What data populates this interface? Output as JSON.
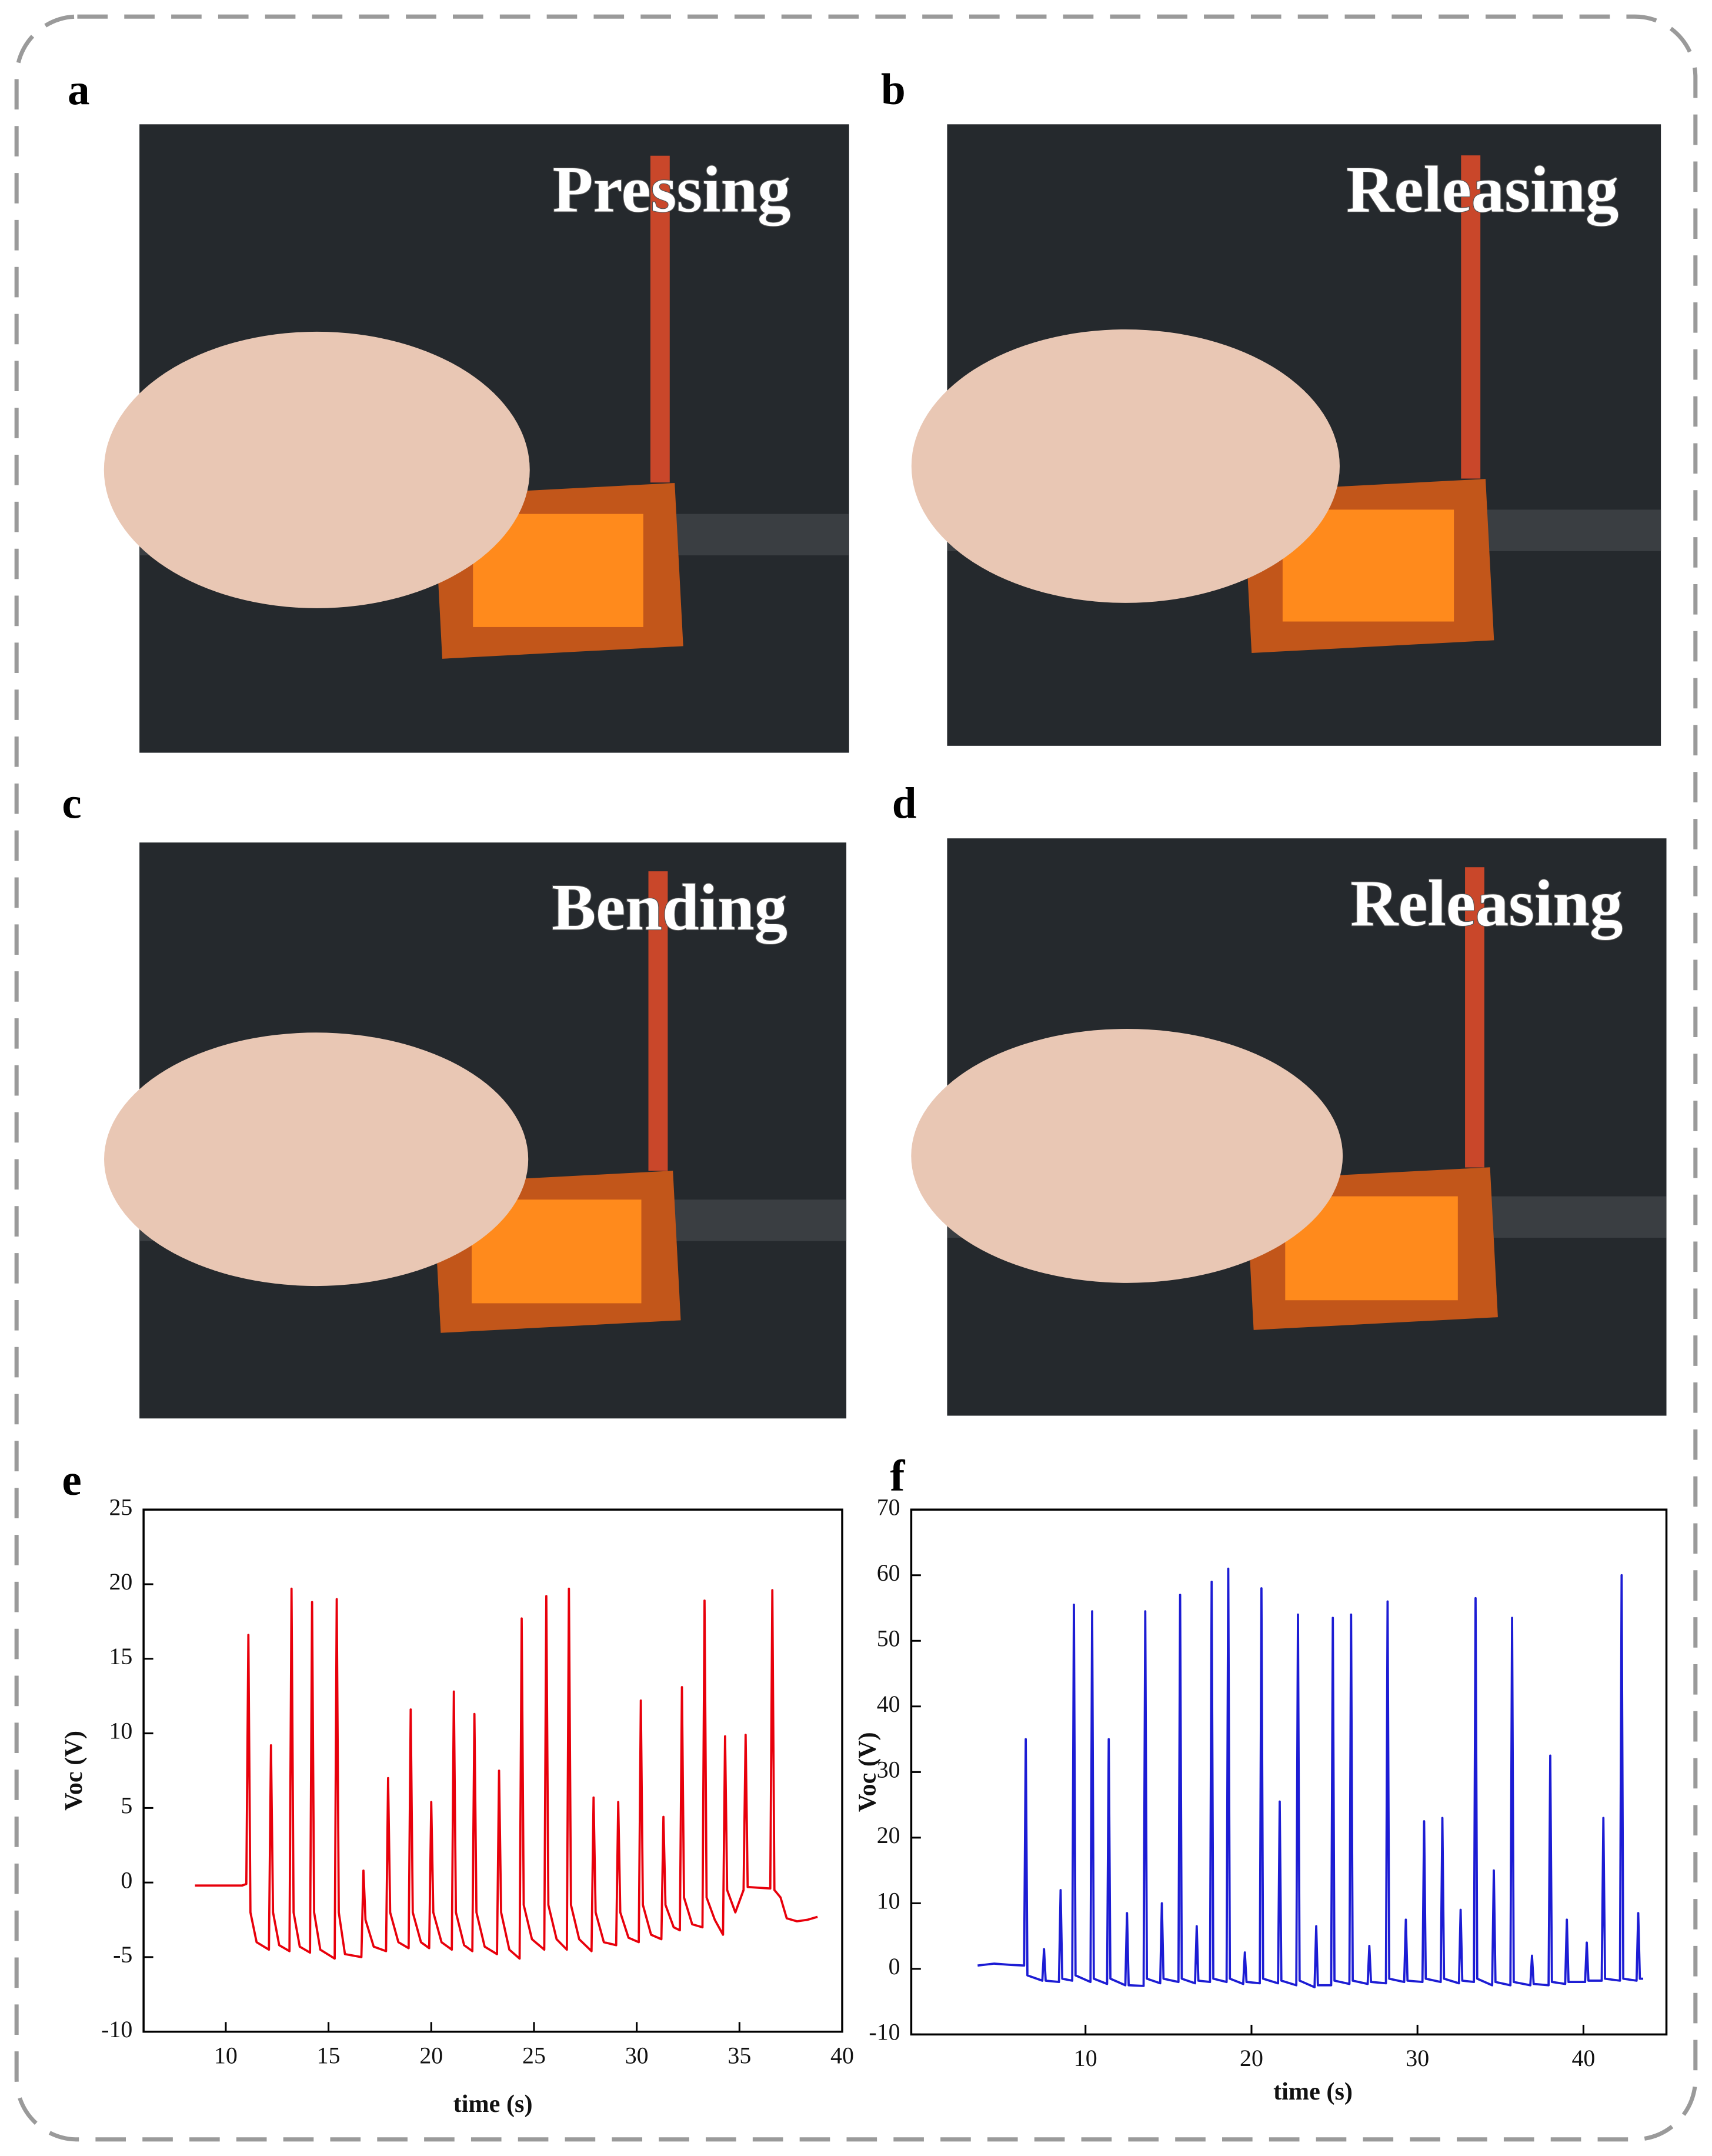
{
  "panels": [
    {
      "label": "a",
      "caption": "Pressing"
    },
    {
      "label": "b",
      "caption": "Releasing"
    },
    {
      "label": "c",
      "caption": "Bending"
    },
    {
      "label": "d",
      "caption": "Releasing"
    }
  ],
  "chart_data": [
    {
      "type": "line",
      "label": "e",
      "x_label": "time (s)",
      "y_label": "Voc (V)",
      "color": "#e8000b",
      "xlim": [
        6,
        40
      ],
      "ylim": [
        -10,
        25
      ],
      "xticks": [
        10,
        15,
        20,
        25,
        30,
        35,
        40
      ],
      "yticks": [
        -10,
        -5,
        0,
        5,
        10,
        15,
        20,
        25
      ],
      "x": [
        8.5,
        10.8,
        11.0,
        11.1,
        11.2,
        11.5,
        12.1,
        12.2,
        12.3,
        12.6,
        13.1,
        13.2,
        13.3,
        13.6,
        14.1,
        14.2,
        14.3,
        14.6,
        15.3,
        15.4,
        15.5,
        15.8,
        16.6,
        16.7,
        16.8,
        17.2,
        17.8,
        17.9,
        18.0,
        18.4,
        18.9,
        19.0,
        19.1,
        19.5,
        19.9,
        20.0,
        20.1,
        20.5,
        21.0,
        21.1,
        21.2,
        21.6,
        22.0,
        22.1,
        22.2,
        22.6,
        23.2,
        23.3,
        23.4,
        23.8,
        24.3,
        24.4,
        24.5,
        24.9,
        25.5,
        25.6,
        25.7,
        26.1,
        26.6,
        26.7,
        26.8,
        27.2,
        27.8,
        27.9,
        28.0,
        28.4,
        29.0,
        29.1,
        29.2,
        29.6,
        30.1,
        30.2,
        30.3,
        30.7,
        31.2,
        31.3,
        31.4,
        31.8,
        32.1,
        32.2,
        32.3,
        32.7,
        33.2,
        33.3,
        33.4,
        33.8,
        34.2,
        34.3,
        34.4,
        34.8,
        35.2,
        35.3,
        35.4,
        36.5,
        36.6,
        36.7,
        37.0,
        37.3,
        37.8,
        38.3,
        38.8
      ],
      "values": [
        -0.2,
        -0.2,
        -0.1,
        16.6,
        -2,
        -4,
        -4.5,
        9.2,
        -2,
        -4.2,
        -4.6,
        19.7,
        -2,
        -4.3,
        -4.7,
        18.8,
        -2,
        -4.5,
        -5.1,
        19.0,
        -2,
        -4.8,
        -5.0,
        0.8,
        -2.5,
        -4.3,
        -4.6,
        7.0,
        -2,
        -4,
        -4.4,
        11.6,
        -2,
        -4,
        -4.4,
        5.4,
        -2,
        -4,
        -4.5,
        12.8,
        -2,
        -4.2,
        -4.6,
        11.3,
        -2,
        -4.3,
        -4.8,
        7.5,
        -2,
        -4.5,
        -5.1,
        17.7,
        -1.5,
        -3.8,
        -4.5,
        19.2,
        -1.5,
        -3.8,
        -4.5,
        19.7,
        -1.5,
        -3.8,
        -4.6,
        5.7,
        -2,
        -4,
        -4.2,
        5.4,
        -2,
        -3.7,
        -4.0,
        12.2,
        -1.5,
        -3.5,
        -3.8,
        4.4,
        -1.5,
        -3,
        -3.2,
        13.1,
        -1,
        -2.8,
        -3.0,
        18.9,
        -1,
        -2.5,
        -3.5,
        9.8,
        -0.5,
        -2,
        -0.5,
        9.9,
        -0.3,
        -0.4,
        19.6,
        -0.5,
        -1.0,
        -2.4,
        -2.6,
        -2.5,
        -2.3
      ]
    },
    {
      "type": "line",
      "label": "f",
      "x_label": "time (s)",
      "y_label": "Voc (V)",
      "color": "#1c1cd4",
      "xlim": [
        -0.5,
        45
      ],
      "ylim": [
        -10,
        70
      ],
      "xticks": [
        10,
        20,
        30,
        40
      ],
      "yticks": [
        -10,
        0,
        10,
        20,
        30,
        40,
        50,
        60,
        70
      ],
      "x": [
        3.5,
        4.5,
        5.5,
        6.3,
        6.4,
        6.5,
        7.4,
        7.5,
        7.6,
        8.4,
        8.5,
        8.6,
        9.2,
        9.3,
        9.4,
        10.3,
        10.4,
        10.5,
        11.3,
        11.4,
        11.5,
        12.4,
        12.5,
        12.6,
        13.5,
        13.6,
        13.7,
        14.5,
        14.6,
        14.7,
        15.6,
        15.7,
        15.8,
        16.6,
        16.7,
        16.8,
        17.5,
        17.6,
        17.7,
        18.5,
        18.6,
        18.7,
        19.5,
        19.6,
        19.7,
        20.5,
        20.6,
        20.7,
        21.6,
        21.7,
        21.8,
        22.7,
        22.8,
        22.9,
        23.8,
        23.9,
        24.0,
        24.8,
        24.9,
        25.0,
        25.9,
        26.0,
        26.1,
        27.0,
        27.1,
        27.2,
        28.1,
        28.2,
        28.3,
        29.2,
        29.3,
        29.4,
        30.3,
        30.4,
        30.5,
        31.4,
        31.5,
        31.6,
        32.5,
        32.6,
        32.7,
        33.4,
        33.5,
        33.6,
        34.5,
        34.6,
        34.7,
        35.6,
        35.7,
        35.8,
        36.8,
        36.9,
        37.0,
        37.9,
        38.0,
        38.1,
        38.9,
        39.0,
        39.1,
        40.1,
        40.2,
        40.3,
        41.1,
        41.2,
        41.3,
        42.2,
        42.3,
        42.4,
        43.2,
        43.3,
        43.4,
        43.6
      ],
      "values": [
        0.5,
        0.8,
        0.6,
        0.5,
        35,
        -1,
        -1.8,
        3,
        -1.8,
        -2,
        12,
        -1.5,
        -1.8,
        55.5,
        -1,
        -2,
        54.5,
        -1.5,
        -2.3,
        35,
        -1.5,
        -2.5,
        8.5,
        -2.5,
        -2.6,
        54.5,
        -1.5,
        -2.2,
        10,
        -1.5,
        -2,
        57,
        -1.5,
        -2.2,
        6.5,
        -1.8,
        -2,
        59,
        -1.5,
        -2,
        61,
        -1.5,
        -2.3,
        2.5,
        -2,
        -2.2,
        58,
        -1.5,
        -2.2,
        25.5,
        -1.8,
        -2.5,
        54,
        -1.8,
        -2.8,
        6.5,
        -2.5,
        -2.5,
        53.5,
        -1.8,
        -2.3,
        54,
        -1.8,
        -2.3,
        3.5,
        -2,
        -2.2,
        56,
        -1.5,
        -2,
        7.5,
        -1.8,
        -2,
        22.5,
        -1.5,
        -2,
        23,
        -1.5,
        -2.2,
        9,
        -1.8,
        -2,
        56.5,
        -1.5,
        -2.5,
        15,
        -2,
        -2.5,
        53.5,
        -2,
        -2.5,
        2,
        -2.3,
        -2.5,
        32.5,
        -2,
        -2.3,
        7.5,
        -2,
        -2,
        4,
        -1.8,
        -1.8,
        23,
        -1.5,
        -1.8,
        60,
        -1.5,
        -1.8,
        8.5,
        -1.5,
        -1.5
      ]
    }
  ]
}
